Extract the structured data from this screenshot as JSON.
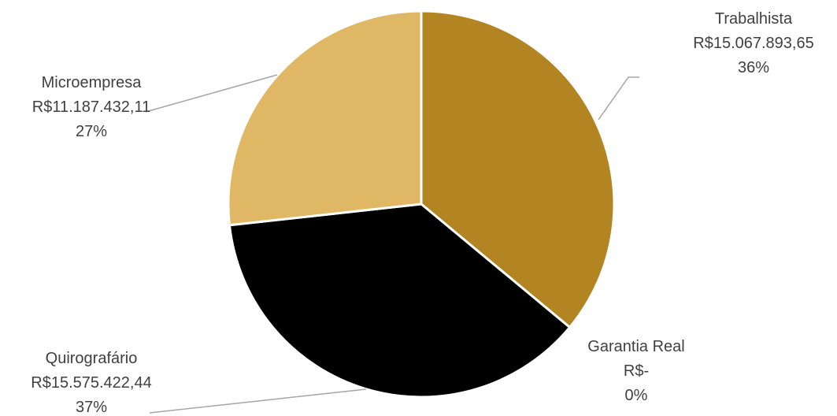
{
  "chart_data": {
    "type": "pie",
    "categories": [
      "Trabalhista",
      "Garantia Real",
      "Quirografário",
      "Microempresa"
    ],
    "values": [
      15067893.65,
      0,
      15575422.44,
      11187432.11
    ],
    "value_labels": [
      "R$15.067.893,65",
      "R$-",
      "R$15.575.422,44",
      "R$11.187.432,11"
    ],
    "percent_labels": [
      "36%",
      "0%",
      "37%",
      "27%"
    ],
    "colors": [
      "#b38422",
      "#7f6000",
      "#000000",
      "#e0b865"
    ],
    "start_angle": "12 o'clock, clockwise"
  }
}
